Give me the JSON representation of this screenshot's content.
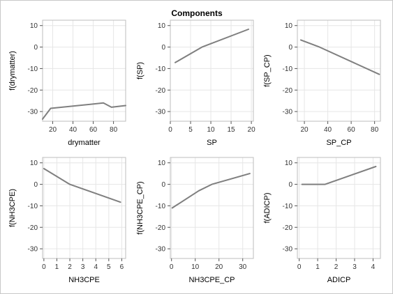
{
  "figure": {
    "title": "Components",
    "background": "#ffffff",
    "line_color": "#7f7f7f",
    "grid_color": "#e6e6e6"
  },
  "chart_data": [
    {
      "type": "line",
      "xlabel": "drymatter",
      "ylabel": "f(drymatter)",
      "xlim": [
        10,
        92
      ],
      "ylim": [
        -34.5,
        12.5
      ],
      "xticks": [
        20,
        40,
        60,
        80
      ],
      "yticks": [
        -30,
        -20,
        -10,
        0,
        10
      ],
      "grid": true,
      "series": [
        {
          "x": [
            10,
            18,
            70,
            78,
            92
          ],
          "y": [
            -33.5,
            -28.5,
            -26,
            -28,
            -27.2
          ]
        }
      ]
    },
    {
      "type": "line",
      "xlabel": "SP",
      "ylabel": "f(SP)",
      "xlim": [
        0,
        20.5
      ],
      "ylim": [
        -34.5,
        12.5
      ],
      "xticks": [
        0,
        5,
        10,
        15,
        20
      ],
      "yticks": [
        -30,
        -20,
        -10,
        0,
        10
      ],
      "grid": true,
      "series": [
        {
          "x": [
            1.2,
            7.8,
            19.3
          ],
          "y": [
            -7.2,
            0,
            8.3
          ]
        }
      ]
    },
    {
      "type": "line",
      "xlabel": "SP_CP",
      "ylabel": "f(SP_CP)",
      "xlim": [
        14,
        85
      ],
      "ylim": [
        -34.5,
        12.5
      ],
      "xticks": [
        20,
        40,
        60,
        80
      ],
      "yticks": [
        -30,
        -20,
        -10,
        0,
        10
      ],
      "grid": true,
      "series": [
        {
          "x": [
            17,
            33,
            84
          ],
          "y": [
            3.3,
            0,
            -12.7
          ]
        }
      ]
    },
    {
      "type": "line",
      "xlabel": "NH3CPE",
      "ylabel": "f(NH3CPE)",
      "xlim": [
        -0.1,
        6.3
      ],
      "ylim": [
        -34.5,
        12.5
      ],
      "xticks": [
        0,
        1,
        2,
        3,
        4,
        5,
        6
      ],
      "yticks": [
        -30,
        -20,
        -10,
        0,
        10
      ],
      "grid": true,
      "series": [
        {
          "x": [
            0,
            2,
            5.9
          ],
          "y": [
            7.3,
            0,
            -8.3
          ]
        }
      ]
    },
    {
      "type": "line",
      "xlabel": "NH3CPE_CP",
      "ylabel": "f(NH3CPE_CP)",
      "xlim": [
        -0.5,
        34.5
      ],
      "ylim": [
        -34.5,
        12.5
      ],
      "xticks": [
        0,
        10,
        20,
        30
      ],
      "yticks": [
        -30,
        -20,
        -10,
        0,
        10
      ],
      "grid": true,
      "series": [
        {
          "x": [
            0.3,
            11.5,
            17,
            33
          ],
          "y": [
            -11,
            -3,
            0,
            5
          ]
        }
      ]
    },
    {
      "type": "line",
      "xlabel": "ADICP",
      "ylabel": "f(ADICP)",
      "xlim": [
        -0.1,
        4.4
      ],
      "ylim": [
        -34.5,
        12.5
      ],
      "xticks": [
        0,
        1,
        2,
        3,
        4
      ],
      "yticks": [
        -30,
        -20,
        -10,
        0,
        10
      ],
      "grid": true,
      "series": [
        {
          "x": [
            0.15,
            1.4,
            4.15
          ],
          "y": [
            0,
            0,
            8.3
          ]
        }
      ]
    }
  ]
}
